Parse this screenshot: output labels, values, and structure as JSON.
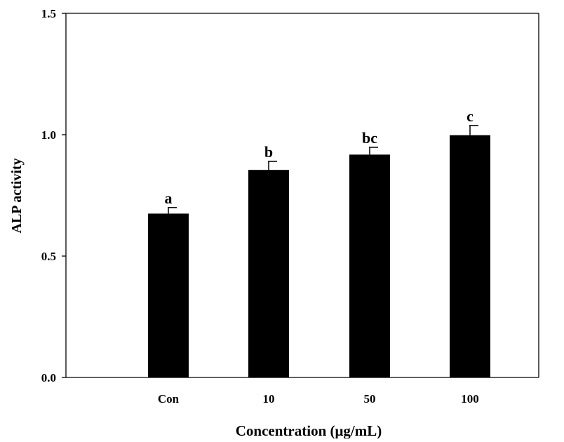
{
  "chart_data": {
    "type": "bar",
    "title": "",
    "xlabel": "Concentration (μg/mL)",
    "ylabel": "ALP activity",
    "categories": [
      "Con",
      "10",
      "50",
      "100"
    ],
    "values": [
      0.675,
      0.855,
      0.918,
      0.998
    ],
    "errors": [
      0.025,
      0.035,
      0.03,
      0.04
    ],
    "significance_labels": [
      "a",
      "b",
      "bc",
      "c"
    ],
    "ylim": [
      0.0,
      1.5
    ],
    "yticks": [
      0.0,
      0.5,
      1.0,
      1.5
    ],
    "ytick_labels": [
      "0.0",
      "0.5",
      "1.0",
      "1.5"
    ],
    "grid": false,
    "legend": "none",
    "bar_color": "#000000"
  }
}
